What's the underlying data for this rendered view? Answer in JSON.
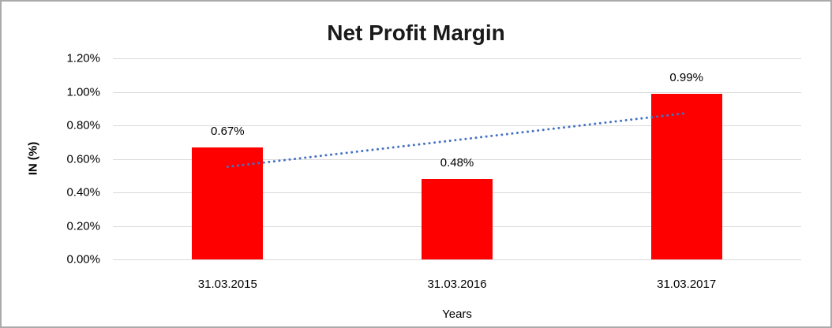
{
  "chart_data": {
    "type": "bar",
    "title": "Net Profit Margin",
    "xlabel": "Years",
    "ylabel": "IN (%)",
    "categories": [
      "31.03.2015",
      "31.03.2016",
      "31.03.2017"
    ],
    "values": [
      0.67,
      0.48,
      0.99
    ],
    "data_labels": [
      "0.67%",
      "0.48%",
      "0.99%"
    ],
    "ylim": [
      0,
      1.2
    ],
    "ytick_step": 0.2,
    "ytick_labels": [
      "0.00%",
      "0.20%",
      "0.40%",
      "0.60%",
      "0.80%",
      "1.00%",
      "1.20%"
    ],
    "grid": true,
    "legend": false,
    "colors": {
      "bar": "#FF0000",
      "trendline": "#4472C4",
      "gridline": "#D9D9D9",
      "text": "#000000",
      "frame_border": "#ABABAB"
    },
    "trendline": {
      "style": "dotted",
      "from": {
        "category_index": 0,
        "value": 0.553
      },
      "to": {
        "category_index": 2,
        "value": 0.873
      }
    }
  }
}
